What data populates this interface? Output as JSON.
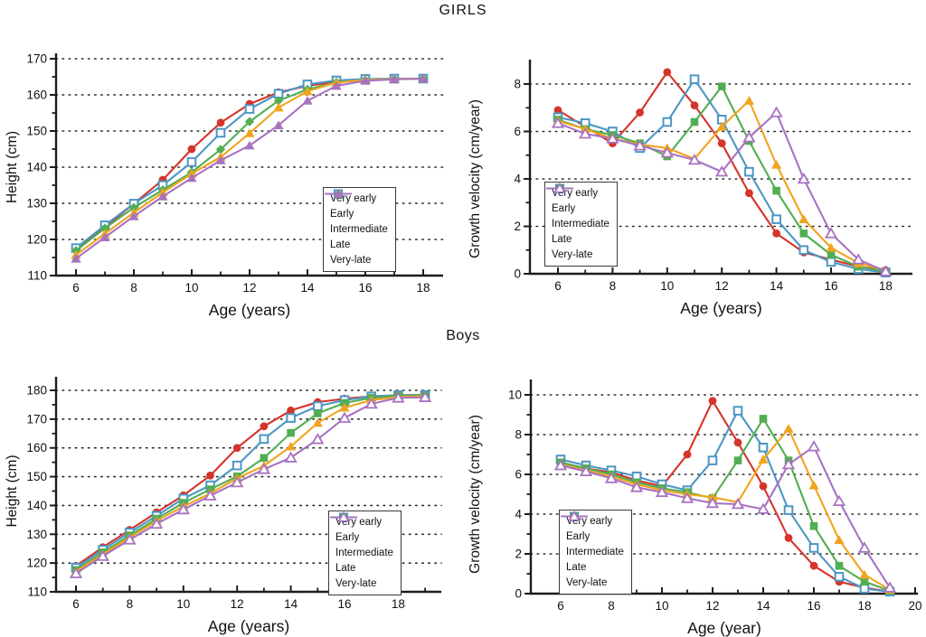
{
  "page": {
    "title_girls": "GIRLS",
    "title_boys": "Boys"
  },
  "legend_labels": [
    "Very early",
    "Early",
    "Intermediate",
    "Late",
    "Very-late"
  ],
  "colors": {
    "very_early": "#d5342b",
    "early": "#4d96c4",
    "intermediate": "#52ae52",
    "late": "#f0a41e",
    "very_late": "#a872c0",
    "axis": "#1c1c1c",
    "grid": "#2a2a2a"
  },
  "chart_data": [
    {
      "id": "girls_height",
      "type": "line",
      "section": "GIRLS",
      "xlabel": "Age (years)",
      "ylabel": "Height (cm)",
      "xlim": [
        6,
        18
      ],
      "ylim": [
        110,
        170
      ],
      "x_ticks": [
        6,
        8,
        10,
        12,
        14,
        16,
        18
      ],
      "x_minor": [
        7,
        9,
        11,
        13,
        15,
        17
      ],
      "y_ticks": [
        110,
        120,
        130,
        140,
        150,
        160,
        170
      ],
      "y_minor": [
        115,
        125,
        135,
        145,
        155,
        165
      ],
      "grid_values": [
        120,
        130,
        140,
        150,
        160,
        170
      ],
      "x": [
        6,
        7,
        8,
        9,
        10,
        11,
        12,
        13,
        14,
        15,
        16,
        17,
        18
      ],
      "series": [
        {
          "name": "Very early",
          "color_key": "very_early",
          "marker": "circle",
          "values": [
            117.2,
            123.3,
            129.9,
            136.5,
            145.0,
            152.3,
            157.5,
            160.7,
            162.5,
            163.6,
            164.2,
            164.4,
            164.5
          ]
        },
        {
          "name": "Early",
          "color_key": "early",
          "marker": "square-open",
          "values": [
            117.6,
            123.9,
            129.9,
            135.0,
            141.4,
            149.5,
            156.1,
            160.3,
            162.9,
            164.0,
            164.4,
            164.5,
            164.5
          ]
        },
        {
          "name": "Intermediate",
          "color_key": "intermediate",
          "marker": "diamond",
          "values": [
            116.9,
            123.1,
            128.8,
            133.7,
            138.6,
            144.9,
            152.6,
            158.4,
            161.5,
            163.5,
            164.1,
            164.4,
            164.5
          ]
        },
        {
          "name": "Late",
          "color_key": "late",
          "marker": "triangle",
          "values": [
            115.7,
            121.6,
            127.4,
            133.0,
            138.2,
            142.8,
            149.4,
            156.5,
            161.0,
            163.4,
            164.1,
            164.4,
            164.5
          ]
        },
        {
          "name": "Very-late",
          "color_key": "very_late",
          "marker": "triangle",
          "values": [
            114.7,
            120.6,
            126.4,
            131.9,
            137.0,
            141.9,
            146.0,
            151.6,
            158.4,
            162.5,
            163.9,
            164.3,
            164.5
          ]
        }
      ]
    },
    {
      "id": "girls_velocity",
      "type": "line",
      "section": "GIRLS",
      "xlabel": "Age (years)",
      "ylabel": "Growth velocity (cm/year)",
      "xlim": [
        6,
        18
      ],
      "ylim": [
        0,
        8
      ],
      "x_ticks": [
        6,
        8,
        10,
        12,
        14,
        16,
        18
      ],
      "x_minor": [
        7,
        9,
        11,
        13,
        15,
        17
      ],
      "y_ticks": [
        0,
        2,
        4,
        6,
        8
      ],
      "y_minor": [
        1,
        3,
        5,
        7
      ],
      "grid_values": [
        2,
        4,
        6,
        8
      ],
      "x": [
        6,
        7,
        8,
        9,
        10,
        11,
        12,
        13,
        14,
        15,
        16,
        17,
        18
      ],
      "series": [
        {
          "name": "Very early",
          "color_key": "very_early",
          "marker": "circle",
          "values": [
            6.9,
            6.2,
            5.5,
            6.8,
            8.5,
            7.1,
            5.5,
            3.4,
            1.7,
            0.9,
            0.6,
            0.3,
            0.15
          ]
        },
        {
          "name": "Early",
          "color_key": "early",
          "marker": "square-open",
          "values": [
            6.6,
            6.35,
            6.0,
            5.3,
            6.4,
            8.2,
            6.5,
            4.3,
            2.3,
            1.0,
            0.5,
            0.2,
            0.05
          ]
        },
        {
          "name": "Intermediate",
          "color_key": "intermediate",
          "marker": "square",
          "values": [
            6.5,
            6.1,
            5.85,
            5.5,
            4.95,
            6.4,
            7.9,
            5.6,
            3.5,
            1.7,
            0.8,
            0.3,
            0.1
          ]
        },
        {
          "name": "Late",
          "color_key": "late",
          "marker": "triangle",
          "values": [
            6.45,
            6.1,
            5.7,
            5.45,
            5.3,
            4.85,
            6.2,
            7.3,
            4.6,
            2.3,
            1.1,
            0.45,
            0.15
          ]
        },
        {
          "name": "Very-late",
          "color_key": "very_late",
          "marker": "triangle-open",
          "values": [
            6.35,
            5.9,
            5.7,
            5.4,
            5.1,
            4.8,
            4.3,
            5.75,
            6.8,
            4.0,
            1.7,
            0.6,
            0.1
          ]
        }
      ]
    },
    {
      "id": "boys_height",
      "type": "line",
      "section": "Boys",
      "xlabel": "Age (years)",
      "ylabel": "Height (cm)",
      "xlim": [
        6,
        19
      ],
      "ylim": [
        110,
        180
      ],
      "x_ticks": [
        6,
        8,
        10,
        12,
        14,
        16,
        18
      ],
      "x_minor": [
        7,
        9,
        11,
        13,
        15,
        17,
        19
      ],
      "y_ticks": [
        110,
        120,
        130,
        140,
        150,
        160,
        170,
        180
      ],
      "y_minor": [
        115,
        125,
        135,
        145,
        155,
        165,
        175
      ],
      "grid_values": [
        120,
        130,
        140,
        150,
        160,
        170,
        180
      ],
      "x": [
        6,
        7,
        8,
        9,
        10,
        11,
        12,
        13,
        14,
        15,
        16,
        17,
        18,
        19
      ],
      "series": [
        {
          "name": "Very early",
          "color_key": "very_early",
          "marker": "circle",
          "values": [
            119.0,
            125.5,
            131.5,
            137.6,
            143.5,
            150.4,
            160.0,
            167.5,
            173.0,
            175.9,
            177.1,
            177.9,
            178.3,
            178.4
          ]
        },
        {
          "name": "Early",
          "color_key": "early",
          "marker": "square-open",
          "values": [
            118.4,
            124.6,
            130.6,
            136.4,
            142.4,
            147.0,
            153.9,
            163.1,
            170.4,
            174.5,
            176.6,
            177.9,
            178.3,
            178.4
          ]
        },
        {
          "name": "Intermediate",
          "color_key": "intermediate",
          "marker": "square",
          "values": [
            117.6,
            123.7,
            129.6,
            135.4,
            140.9,
            145.6,
            150.1,
            156.5,
            165.2,
            172.0,
            175.6,
            177.4,
            178.1,
            178.2
          ]
        },
        {
          "name": "Late",
          "color_key": "late",
          "marker": "triangle",
          "values": [
            117.1,
            123.0,
            128.9,
            134.6,
            139.7,
            144.2,
            149.4,
            153.8,
            160.5,
            168.7,
            174.0,
            176.6,
            177.7,
            178.0
          ]
        },
        {
          "name": "Very-late",
          "color_key": "very_late",
          "marker": "triangle-open",
          "values": [
            116.4,
            122.4,
            128.1,
            133.6,
            138.6,
            143.4,
            148.0,
            152.6,
            156.6,
            163.0,
            170.4,
            175.3,
            177.4,
            177.6
          ]
        }
      ]
    },
    {
      "id": "boys_velocity",
      "type": "line",
      "section": "Boys",
      "xlabel": "Age (year)",
      "ylabel": "Growth velocity (cm/year)",
      "xlim": [
        6,
        19
      ],
      "ylim": [
        0,
        10
      ],
      "x_ticks": [
        6,
        8,
        10,
        12,
        14,
        16,
        18,
        20
      ],
      "x_minor": [
        7,
        9,
        11,
        13,
        15,
        17,
        19
      ],
      "y_ticks": [
        0,
        2,
        4,
        6,
        8,
        10
      ],
      "y_minor": [
        1,
        3,
        5,
        7,
        9
      ],
      "grid_values": [
        2,
        4,
        6,
        8,
        10
      ],
      "x": [
        6,
        7,
        8,
        9,
        10,
        11,
        12,
        13,
        14,
        15,
        16,
        17,
        18,
        19
      ],
      "series": [
        {
          "name": "Very early",
          "color_key": "very_early",
          "marker": "circle",
          "values": [
            6.6,
            6.3,
            6.1,
            5.7,
            5.4,
            7.0,
            9.7,
            7.6,
            5.4,
            2.8,
            1.4,
            0.6,
            0.3,
            0.1
          ]
        },
        {
          "name": "Early",
          "color_key": "early",
          "marker": "square-open",
          "values": [
            6.75,
            6.45,
            6.2,
            5.9,
            5.5,
            5.2,
            6.7,
            9.2,
            7.35,
            4.2,
            2.3,
            0.85,
            0.25,
            0.1
          ]
        },
        {
          "name": "Intermediate",
          "color_key": "intermediate",
          "marker": "square",
          "values": [
            6.6,
            6.3,
            6.0,
            5.6,
            5.3,
            5.1,
            4.8,
            6.7,
            8.8,
            6.7,
            3.4,
            1.4,
            0.6,
            0.15
          ]
        },
        {
          "name": "Late",
          "color_key": "late",
          "marker": "triangle",
          "values": [
            6.5,
            6.2,
            5.9,
            5.5,
            5.2,
            5.0,
            4.85,
            4.6,
            6.75,
            8.3,
            5.45,
            2.7,
            0.95,
            0.2
          ]
        },
        {
          "name": "Very-late",
          "color_key": "very_late",
          "marker": "triangle-open",
          "values": [
            6.45,
            6.15,
            5.8,
            5.35,
            5.1,
            4.8,
            4.55,
            4.5,
            4.25,
            6.5,
            7.4,
            4.65,
            2.3,
            0.3
          ]
        }
      ]
    }
  ]
}
